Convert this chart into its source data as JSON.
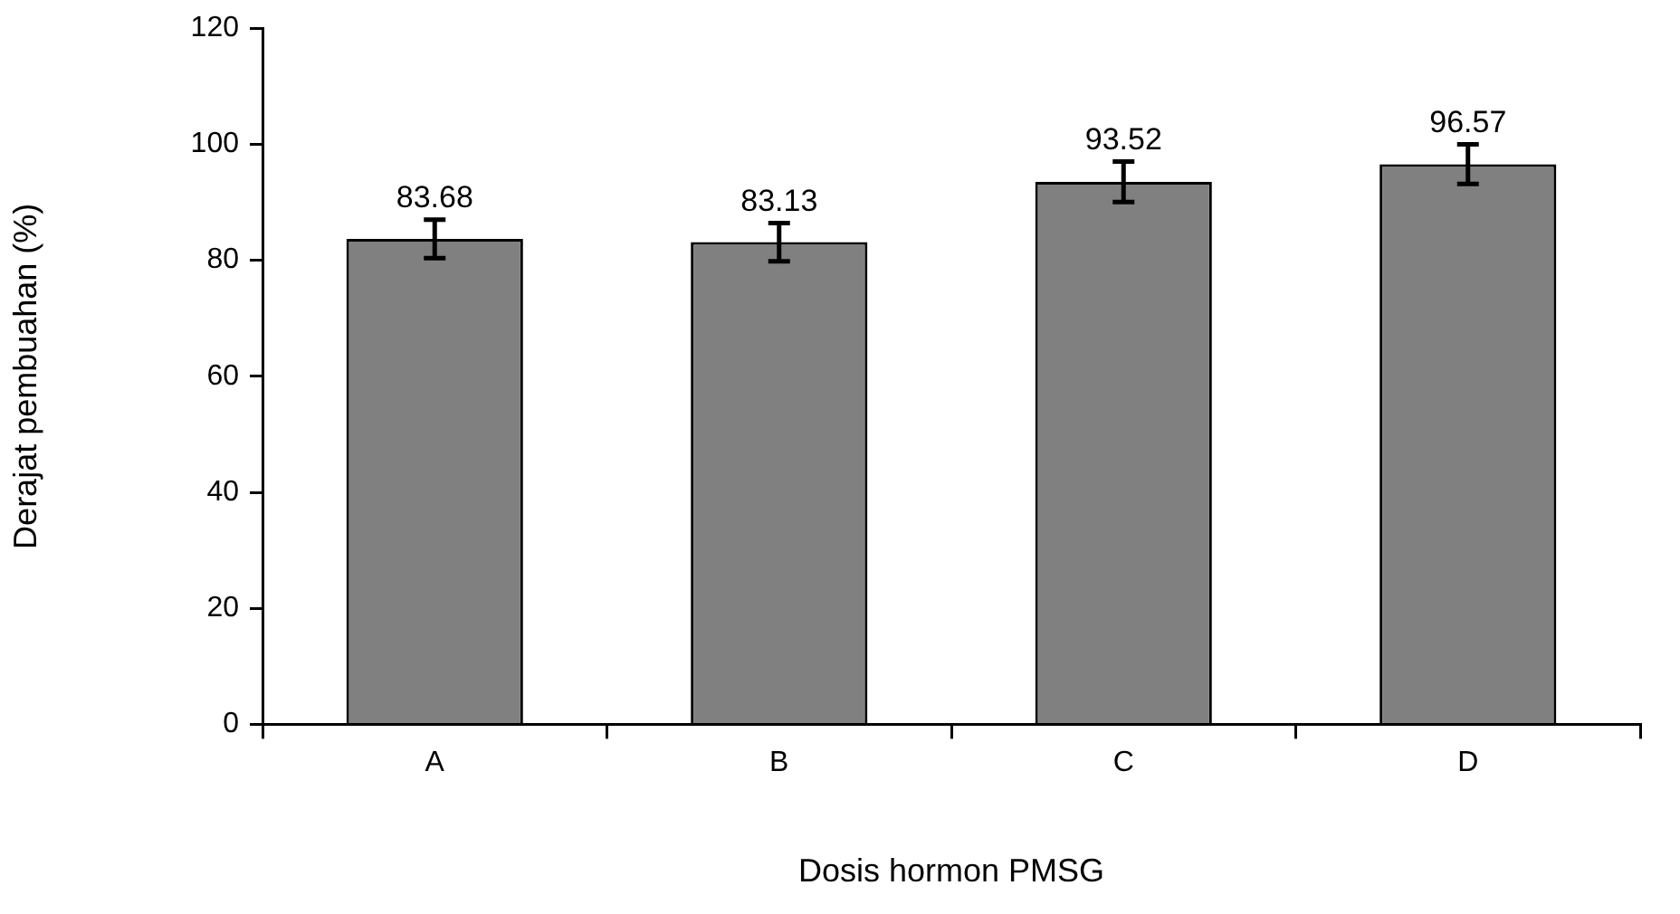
{
  "chart_data": {
    "type": "bar",
    "xlabel": "Dosis hormon PMSG",
    "ylabel": "Derajat pembuahan (%)",
    "categories": [
      "A",
      "B",
      "C",
      "D"
    ],
    "values": [
      83.68,
      83.13,
      93.52,
      96.57
    ],
    "errors": [
      3.3,
      3.3,
      3.5,
      3.4
    ],
    "color": "#808080",
    "ylim": [
      0,
      120
    ],
    "yticks": [
      0,
      20,
      40,
      60,
      80,
      100,
      120
    ],
    "data_labels": true,
    "grid": false,
    "legend": false
  }
}
